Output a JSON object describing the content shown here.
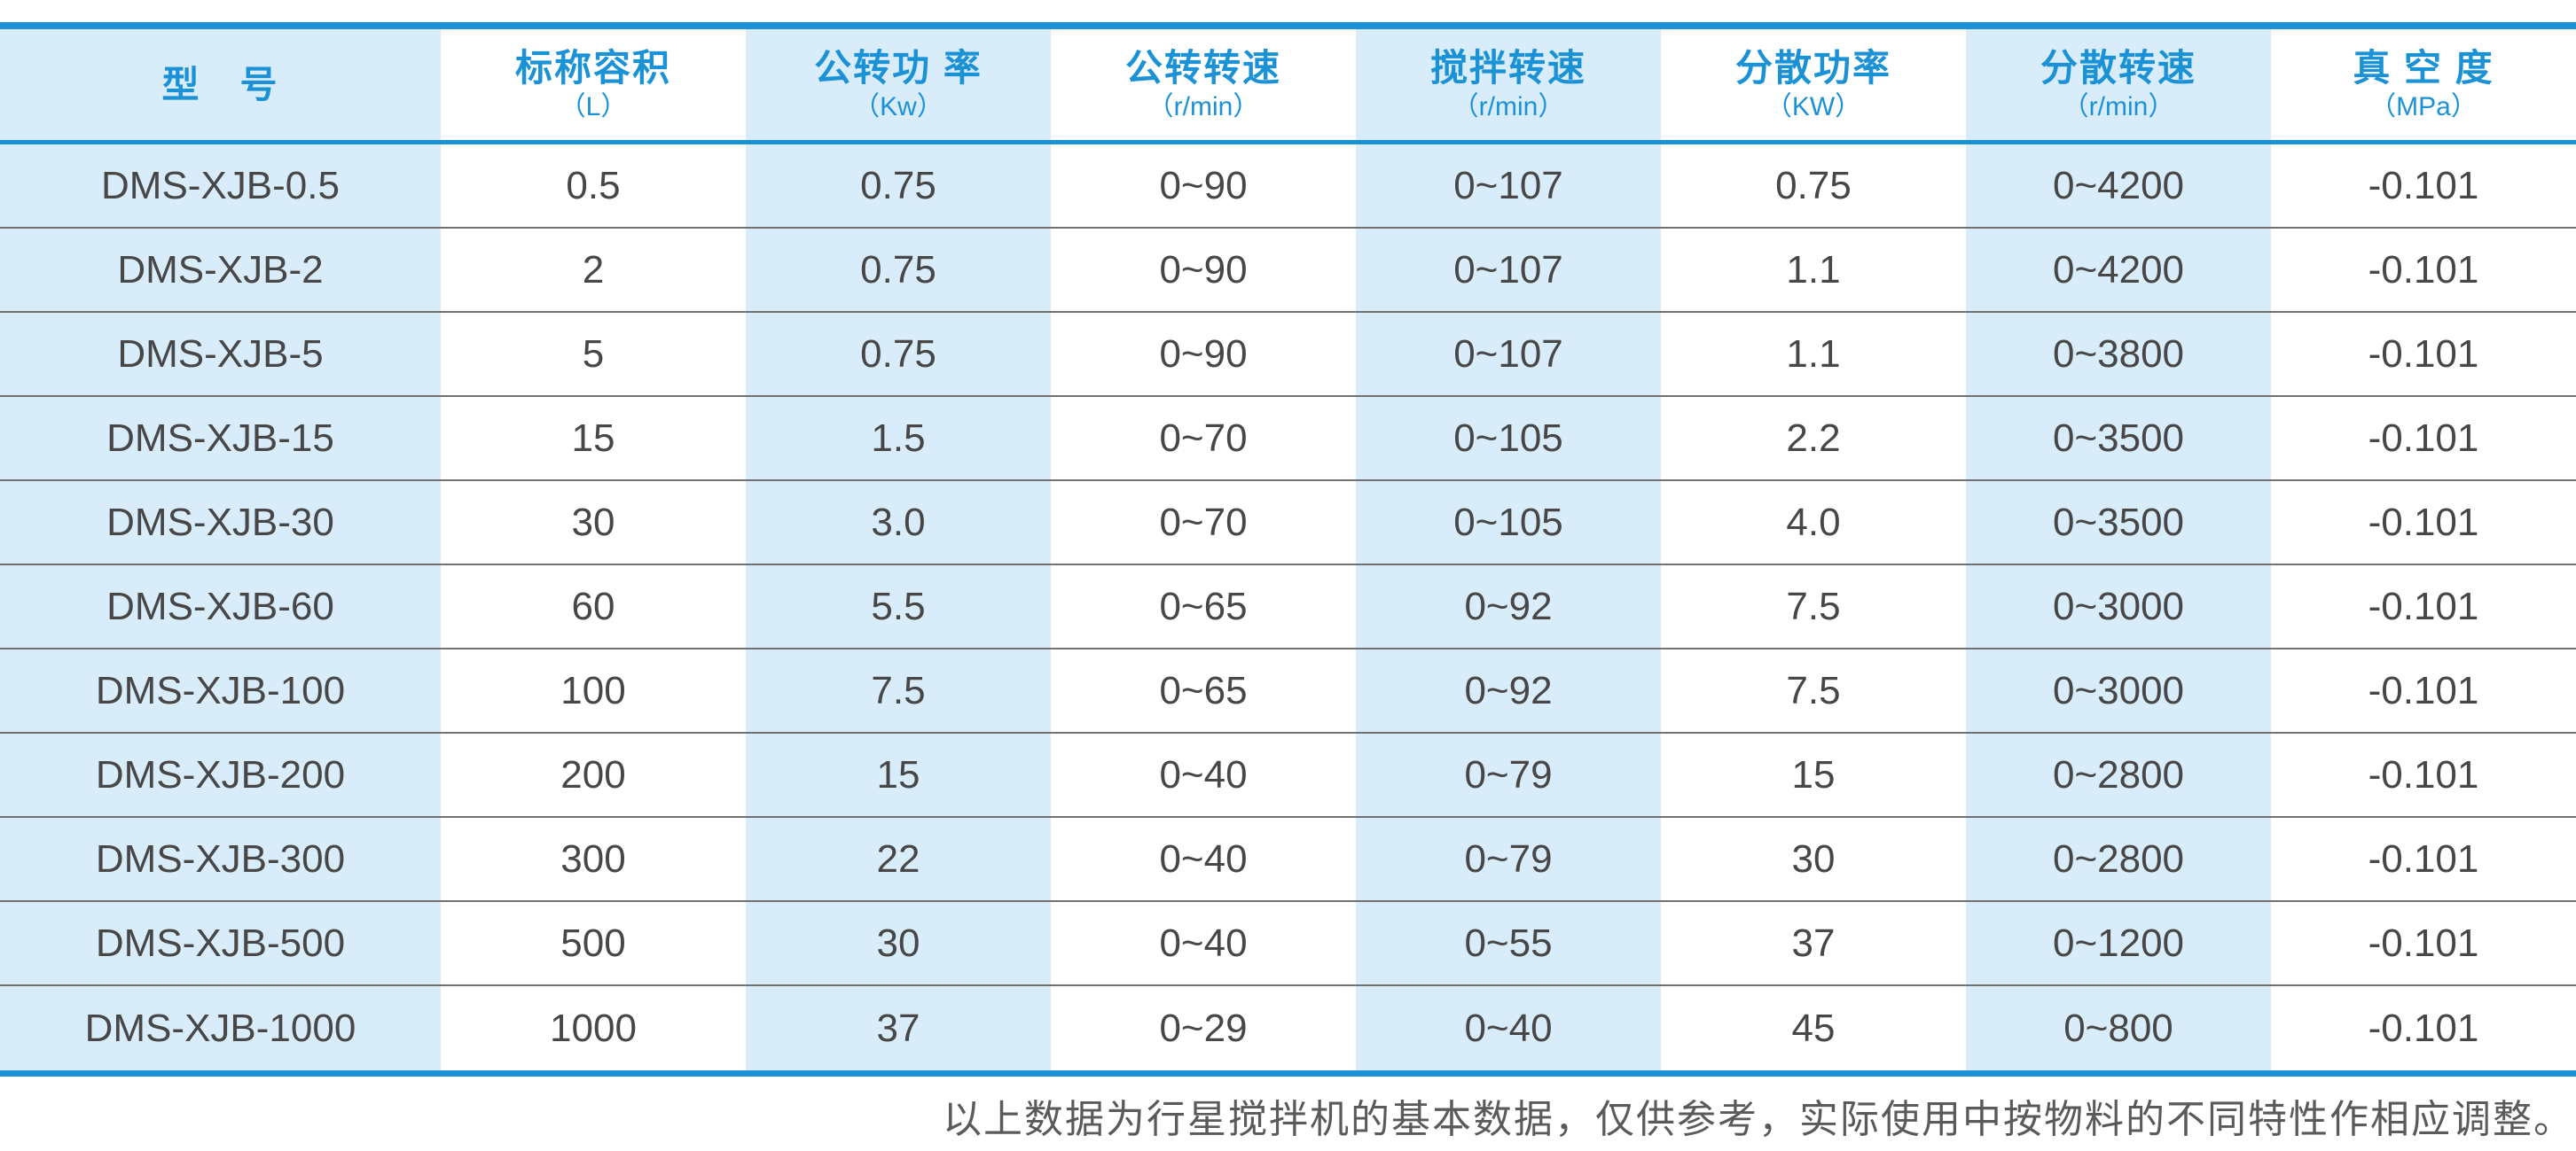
{
  "table": {
    "columns": [
      {
        "title": "型　号",
        "unit": ""
      },
      {
        "title": "标称容积",
        "unit": "（L）"
      },
      {
        "title": "公转功 率",
        "unit": "（Kw）"
      },
      {
        "title": "公转转速",
        "unit": "（r/min）"
      },
      {
        "title": "搅拌转速",
        "unit": "（r/min）"
      },
      {
        "title": "分散功率",
        "unit": "（KW）"
      },
      {
        "title": "分散转速",
        "unit": "（r/min）"
      },
      {
        "title": "真 空 度",
        "unit": "（MPa）"
      }
    ],
    "rows": [
      [
        "DMS-XJB-0.5",
        "0.5",
        "0.75",
        "0~90",
        "0~107",
        "0.75",
        "0~4200",
        "-0.101"
      ],
      [
        "DMS-XJB-2",
        "2",
        "0.75",
        "0~90",
        "0~107",
        "1.1",
        "0~4200",
        "-0.101"
      ],
      [
        "DMS-XJB-5",
        "5",
        "0.75",
        "0~90",
        "0~107",
        "1.1",
        "0~3800",
        "-0.101"
      ],
      [
        "DMS-XJB-15",
        "15",
        "1.5",
        "0~70",
        "0~105",
        "2.2",
        "0~3500",
        "-0.101"
      ],
      [
        "DMS-XJB-30",
        "30",
        "3.0",
        "0~70",
        "0~105",
        "4.0",
        "0~3500",
        "-0.101"
      ],
      [
        "DMS-XJB-60",
        "60",
        "5.5",
        "0~65",
        "0~92",
        "7.5",
        "0~3000",
        "-0.101"
      ],
      [
        "DMS-XJB-100",
        "100",
        "7.5",
        "0~65",
        "0~92",
        "7.5",
        "0~3000",
        "-0.101"
      ],
      [
        "DMS-XJB-200",
        "200",
        "15",
        "0~40",
        "0~79",
        "15",
        "0~2800",
        "-0.101"
      ],
      [
        "DMS-XJB-300",
        "300",
        "22",
        "0~40",
        "0~79",
        "30",
        "0~2800",
        "-0.101"
      ],
      [
        "DMS-XJB-500",
        "500",
        "30",
        "0~40",
        "0~55",
        "37",
        "0~1200",
        "-0.101"
      ],
      [
        "DMS-XJB-1000",
        "1000",
        "37",
        "0~29",
        "0~40",
        "45",
        "0~800",
        "-0.101"
      ]
    ]
  },
  "footer": {
    "note": "以上数据为行星搅拌机的基本数据，仅供参考，实际使用中按物料的不同特性作相应调整。"
  },
  "colors": {
    "accent_blue": "#1b91d6",
    "stripe_blue": "#d9ecf9",
    "data_text": "#474747",
    "row_divider": "#707070",
    "footer_text": "#5a5a5a"
  }
}
